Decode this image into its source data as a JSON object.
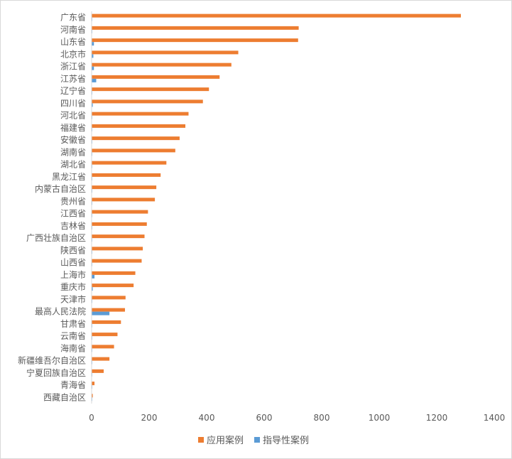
{
  "chart_data": {
    "type": "bar",
    "orientation": "horizontal",
    "categories": [
      "广东省",
      "河南省",
      "山东省",
      "北京市",
      "浙江省",
      "江苏省",
      "辽宁省",
      "四川省",
      "河北省",
      "福建省",
      "安徽省",
      "湖南省",
      "湖北省",
      "黑龙江省",
      "内蒙古自治区",
      "贵州省",
      "江西省",
      "吉林省",
      "广西壮族自治区",
      "陕西省",
      "山西省",
      "上海市",
      "重庆市",
      "天津市",
      "最高人民法院",
      "甘肃省",
      "云南省",
      "海南省",
      "新疆维吾尔自治区",
      "宁夏回族自治区",
      "青海省",
      "西藏自治区"
    ],
    "series": [
      {
        "name": "应用案例",
        "color": "#ED7D31",
        "values": [
          1284,
          720,
          718,
          510,
          486,
          445,
          408,
          387,
          337,
          326,
          306,
          291,
          260,
          240,
          225,
          220,
          196,
          192,
          184,
          178,
          174,
          152,
          146,
          118,
          116,
          102,
          90,
          78,
          62,
          42,
          10,
          4
        ]
      },
      {
        "name": "指导性案例",
        "color": "#5B9BD5",
        "values": [
          2,
          2,
          8,
          6,
          8,
          16,
          2,
          4,
          2,
          2,
          2,
          2,
          2,
          2,
          2,
          2,
          2,
          2,
          2,
          2,
          2,
          10,
          4,
          2,
          62,
          2,
          2,
          2,
          2,
          2,
          2,
          2
        ]
      }
    ],
    "xlim": [
      0,
      1400
    ],
    "xticks": [
      0,
      200,
      400,
      600,
      800,
      1000,
      1200,
      1400
    ],
    "grid": false,
    "legend": "bottom"
  }
}
